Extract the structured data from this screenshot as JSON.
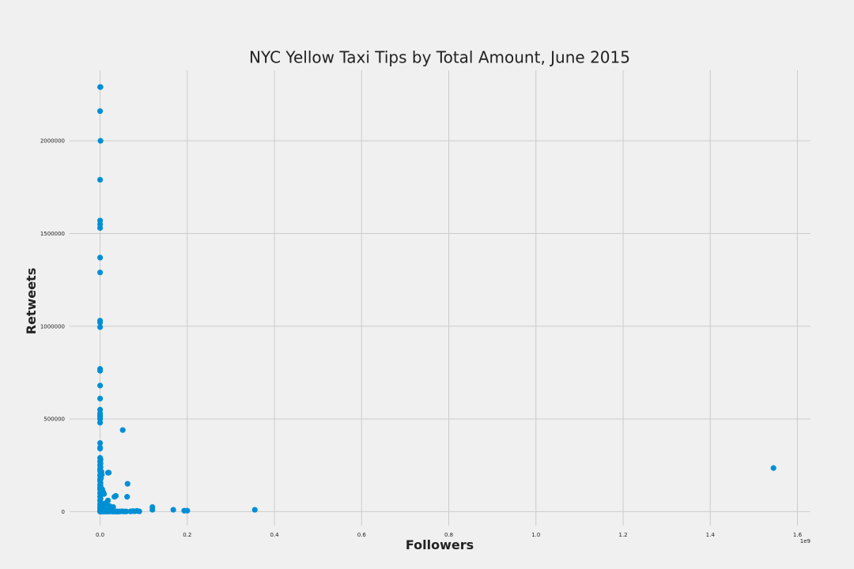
{
  "chart_data": {
    "type": "scatter",
    "title": "NYC Yellow Taxi Tips by Total Amount, June 2015",
    "xlabel": "Followers",
    "ylabel": "Retweets",
    "x_offset_label": "1e9",
    "xlim": [
      -0.07,
      1.63
    ],
    "ylim": [
      -75000,
      2380000
    ],
    "xticks": [
      0.0,
      0.2,
      0.4,
      0.6,
      0.8,
      1.0,
      1.2,
      1.4,
      1.6
    ],
    "xtick_labels": [
      "0.0",
      "0.2",
      "0.4",
      "0.6",
      "0.8",
      "1.0",
      "1.2",
      "1.4",
      "1.6"
    ],
    "yticks": [
      0,
      500000,
      1000000,
      1500000,
      2000000
    ],
    "ytick_labels": [
      "0",
      "500000",
      "1000000",
      "1500000",
      "2000000"
    ],
    "grid": true,
    "marker_color": "#008fd5",
    "background": "#f0f0f0",
    "x": [
      0.0,
      0.001,
      0.0,
      0.001,
      0.0,
      0.0,
      0.0,
      0.0,
      0.0,
      0.0,
      0.0,
      0.0,
      0.0,
      0.0,
      0.0,
      0.0,
      0.0,
      0.0,
      0.0,
      0.0,
      0.0,
      0.0,
      0.0,
      0.0,
      0.0,
      0.0,
      0.0,
      0.001,
      0.0,
      0.001,
      0.0,
      0.001,
      0.0,
      0.0,
      0.001,
      0.0,
      0.001,
      0.0,
      0.0,
      0.001,
      0.0,
      0.001,
      0.0,
      0.0,
      0.001,
      0.0,
      0.001,
      0.0,
      0.001,
      0.0,
      0.001,
      0.0,
      0.001,
      0.0,
      0.001,
      0.0,
      0.001,
      0.0,
      0.0,
      0.001,
      0.0,
      0.001,
      0.002,
      0.003,
      0.004,
      0.005,
      0.006,
      0.007,
      0.008,
      0.01,
      0.012,
      0.015,
      0.018,
      0.02,
      0.022,
      0.025,
      0.028,
      0.03,
      0.032,
      0.035,
      0.038,
      0.04,
      0.042,
      0.045,
      0.05,
      0.055,
      0.06,
      0.07,
      0.075,
      0.08,
      0.085,
      0.09,
      0.002,
      0.004,
      0.006,
      0.008,
      0.01,
      0.014,
      0.016,
      0.02,
      0.024,
      0.028,
      0.005,
      0.006,
      0.008,
      0.009,
      0.007,
      0.003,
      0.004,
      0.002,
      0.018,
      0.012,
      0.01,
      0.016,
      0.022,
      0.033,
      0.036,
      0.03,
      0.025,
      0.02,
      0.052,
      0.063,
      0.062,
      0.018,
      0.12,
      0.12,
      0.168,
      0.193,
      0.2,
      0.355,
      1.545
    ],
    "y": [
      2290000,
      2290000,
      2160000,
      2000000,
      1790000,
      1570000,
      1550000,
      1530000,
      1370000,
      1290000,
      1030000,
      1020000,
      995000,
      770000,
      760000,
      680000,
      610000,
      550000,
      530000,
      520000,
      510000,
      500000,
      480000,
      370000,
      345000,
      340000,
      290000,
      280000,
      270000,
      260000,
      250000,
      240000,
      230000,
      220000,
      210000,
      195000,
      185000,
      175000,
      165000,
      155000,
      145000,
      140000,
      130000,
      120000,
      110000,
      100000,
      90000,
      80000,
      70000,
      60000,
      50000,
      40000,
      30000,
      25000,
      20000,
      15000,
      10000,
      5000,
      2000,
      1000,
      500,
      3000,
      1000,
      2000,
      1500,
      800,
      1200,
      600,
      900,
      1500,
      700,
      1100,
      500,
      2000,
      900,
      1300,
      800,
      600,
      1000,
      500,
      700,
      400,
      900,
      600,
      2000,
      700,
      900,
      1100,
      3000,
      2000,
      4000,
      1500,
      35000,
      25000,
      20000,
      15000,
      12000,
      8000,
      6000,
      4000,
      3000,
      2500,
      120000,
      110000,
      100000,
      95000,
      105000,
      215000,
      200000,
      180000,
      60000,
      45000,
      35000,
      40000,
      30000,
      80000,
      85000,
      25000,
      15000,
      210000,
      440000,
      150000,
      80000,
      210000,
      25000,
      10000,
      10000,
      5000,
      5000,
      10000,
      235000
    ]
  }
}
